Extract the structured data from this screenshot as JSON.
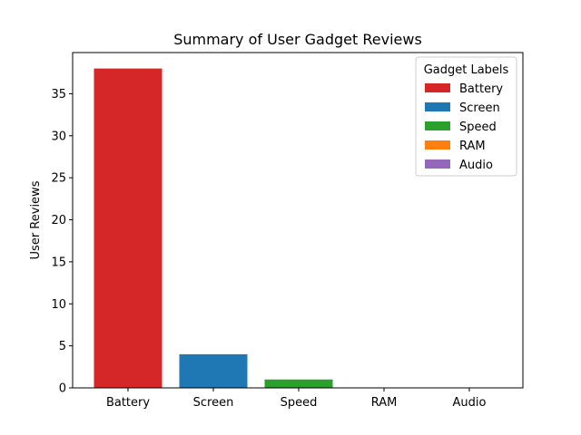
{
  "chart_data": {
    "type": "bar",
    "title": "Summary of User Gadget Reviews",
    "xlabel": "",
    "ylabel": "User Reviews",
    "categories": [
      "Battery",
      "Screen",
      "Speed",
      "RAM",
      "Audio"
    ],
    "values": [
      38,
      4,
      1,
      0,
      0
    ],
    "colors": [
      "#d62728",
      "#1f77b4",
      "#2ca02c",
      "#ff7f0e",
      "#9467bd"
    ],
    "ylim": [
      0,
      39.9
    ],
    "yticks": [
      0,
      5,
      10,
      15,
      20,
      25,
      30,
      35
    ],
    "grid": false,
    "legend": {
      "title": "Gadget Labels",
      "placement": "top-right",
      "entries": [
        "Battery",
        "Screen",
        "Speed",
        "RAM",
        "Audio"
      ]
    }
  }
}
